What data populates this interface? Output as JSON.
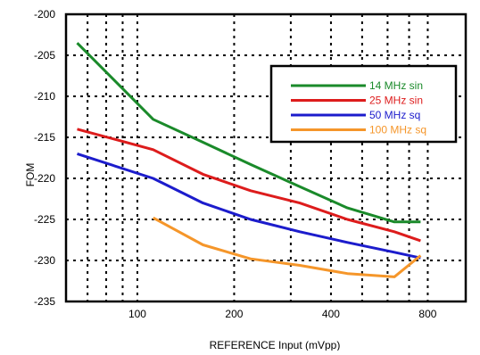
{
  "chart_data": {
    "type": "line",
    "title": "",
    "xlabel": "REFERENCE Input (mVpp)",
    "ylabel": "FOM",
    "x_scale": "log",
    "xlim": [
      60,
      1050
    ],
    "ylim": [
      -235,
      -200
    ],
    "x_ticks": [
      100,
      200,
      400,
      800
    ],
    "y_ticks": [
      -200,
      -205,
      -210,
      -215,
      -220,
      -225,
      -230,
      -235
    ],
    "grid": true,
    "legend_position": "top-right",
    "series": [
      {
        "name": "14 MHz sin",
        "color": "#1a8a2a",
        "x": [
          65,
          112,
          160,
          225,
          320,
          450,
          630,
          760
        ],
        "y": [
          -203.5,
          -212.8,
          -215.6,
          -218.3,
          -221,
          -223.6,
          -225.3,
          -225.3
        ]
      },
      {
        "name": "25 MHz sin",
        "color": "#dd1c1c",
        "x": [
          65,
          112,
          160,
          225,
          320,
          450,
          630,
          760
        ],
        "y": [
          -214,
          -216.5,
          -219.5,
          -221.5,
          -223,
          -225,
          -226.5,
          -227.6
        ]
      },
      {
        "name": "50 MHz sq",
        "color": "#1c1ccc",
        "x": [
          65,
          112,
          160,
          225,
          320,
          450,
          630,
          760
        ],
        "y": [
          -217,
          -220,
          -223,
          -225,
          -226.5,
          -227.8,
          -229,
          -229.7
        ]
      },
      {
        "name": "100 MHz sq",
        "color": "#f5962a",
        "x": [
          112,
          160,
          225,
          320,
          450,
          630,
          760
        ],
        "y": [
          -224.8,
          -228.1,
          -229.8,
          -230.6,
          -231.6,
          -232,
          -229.4
        ]
      }
    ]
  }
}
